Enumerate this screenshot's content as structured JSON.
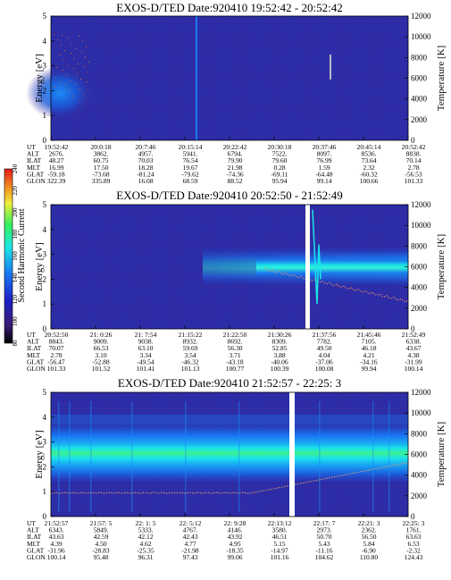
{
  "chart_data": [
    {
      "type": "heatmap",
      "title": "EXOS-D/TED   Date:920410  19:52:42 - 20:52:42",
      "ylabel": "Energy [eV]",
      "y2label": "Temperature [K]",
      "ylim": [
        0,
        5
      ],
      "y2lim": [
        0,
        12000
      ],
      "yticks": [
        "0",
        "1",
        "2",
        "3",
        "4",
        "5"
      ],
      "y2ticks": [
        "0",
        "2000",
        "4000",
        "6000",
        "8000",
        "10000",
        "12000"
      ],
      "gap": false,
      "ephemeris_labels": [
        "UT",
        "ALT",
        "ILAT",
        "MLT",
        "GLAT",
        "GLON"
      ],
      "ephemeris": [
        [
          "19:52:42",
          "20:0:18",
          "20:7:46",
          "20:15:14",
          "20:22:42",
          "20:30:18",
          "20:37:46",
          "20:45:14",
          "20:52:42"
        ],
        [
          "2676.",
          "3862.",
          "4957.",
          "5941.",
          "6794.",
          "7522.",
          "8097.",
          "8536.",
          "8838."
        ],
        [
          "48.27",
          "60.75",
          "70.03",
          "76.54",
          "79.90",
          "79.60",
          "76.99",
          "73.64",
          "70.14"
        ],
        [
          "16.99",
          "17.50",
          "18.28",
          "19.67",
          "21.98",
          "0.28",
          "1.59",
          "2.32",
          "2.78"
        ],
        [
          "-59.18",
          "-73.68",
          "-81.24",
          "-79.62",
          "-74.36",
          "-69.11",
          "-64.48",
          "-60.32",
          "-56.53"
        ],
        [
          "322.39",
          "335.89",
          "16.08",
          "68.59",
          "88.52",
          "95.94",
          "99.14",
          "100.66",
          "101.33"
        ]
      ]
    },
    {
      "type": "heatmap",
      "title": "EXOS-D/TED   Date:920410  20:52:50 - 21:52:49",
      "ylabel": "Energy [eV]",
      "y2label": "Temperature [K]",
      "ylim": [
        0,
        5
      ],
      "y2lim": [
        0,
        12000
      ],
      "yticks": [
        "0",
        "1",
        "2",
        "3",
        "4",
        "5"
      ],
      "y2ticks": [
        "0",
        "2000",
        "4000",
        "6000",
        "8000",
        "10000",
        "12000"
      ],
      "gap": true,
      "colorbar_label": "Second Harmonic Current",
      "colorbar_ticks": [
        "80",
        "100",
        "120",
        "140",
        "160",
        "180",
        "200",
        "220",
        "240"
      ],
      "ephemeris_labels": [
        "UT",
        "ALT",
        "ILAT",
        "MLT",
        "GLAT",
        "GLON"
      ],
      "ephemeris": [
        [
          "20:52:50",
          "21: 0:26",
          "21: 7:54",
          "21:15:22",
          "21:22:50",
          "21:30:26",
          "21:37:56",
          "21:45:46",
          "21:52:49"
        ],
        [
          "8843.",
          "9009.",
          "9038.",
          "8932.",
          "8692.",
          "8309.",
          "7782.",
          "7105.",
          "6338."
        ],
        [
          "70.07",
          "66.53",
          "63.10",
          "59.69",
          "56.30",
          "52.85",
          "49.50",
          "46.18",
          "43.67"
        ],
        [
          "2.78",
          "3.10",
          "3.34",
          "3.54",
          "3.71",
          "3.88",
          "4.04",
          "4.21",
          "4.38"
        ],
        [
          "-56.47",
          "-52.88",
          "-49.54",
          "-46.32",
          "-43.18",
          "-40.06",
          "-37.06",
          "-34.16",
          "-31.99"
        ],
        [
          "101.33",
          "101.52",
          "101.41",
          "101.13",
          "100.77",
          "100.39",
          "100.08",
          "99.94",
          "100.14"
        ]
      ]
    },
    {
      "type": "heatmap",
      "title": "EXOS-D/TED   Date:920410  21:52:57 - 22:25: 3",
      "ylabel": "Energy [eV]",
      "y2label": "Temperature [K]",
      "ylim": [
        0,
        5
      ],
      "y2lim": [
        0,
        12000
      ],
      "yticks": [
        "0",
        "1",
        "2",
        "3",
        "4",
        "5"
      ],
      "y2ticks": [
        "0",
        "2000",
        "4000",
        "6000",
        "8000",
        "10000",
        "12000"
      ],
      "gap": true,
      "ephemeris_labels": [
        "UT",
        "ALT",
        "ILAT",
        "MLT",
        "GLAT",
        "GLON"
      ],
      "ephemeris": [
        [
          "21:52:57",
          "21:57: 5",
          "22: 1: 5",
          "22: 5:12",
          "22: 9:28",
          "22:13:12",
          "22:17: 7",
          "22:21: 3",
          "22:25: 3"
        ],
        [
          "6343.",
          "5849.",
          "5333.",
          "4767.",
          "4146.",
          "3580.",
          "2973.",
          "2362.",
          "1761."
        ],
        [
          "43.63",
          "42.59",
          "42.12",
          "42.43",
          "43.92",
          "46.51",
          "50.70",
          "56.50",
          "63.63"
        ],
        [
          "4.39",
          "4.50",
          "4.62",
          "4.77",
          "4.95",
          "5.15",
          "5.43",
          "5.84",
          "6.53"
        ],
        [
          "-31.96",
          "-28.83",
          "-25.35",
          "-21.98",
          "-18.35",
          "-14.97",
          "-11.16",
          "-6.90",
          "-2.32"
        ],
        [
          "100.14",
          "95.48",
          "96.31",
          "97.43",
          "99.06",
          "101.16",
          "104.62",
          "110.80",
          "124.43"
        ]
      ]
    }
  ]
}
